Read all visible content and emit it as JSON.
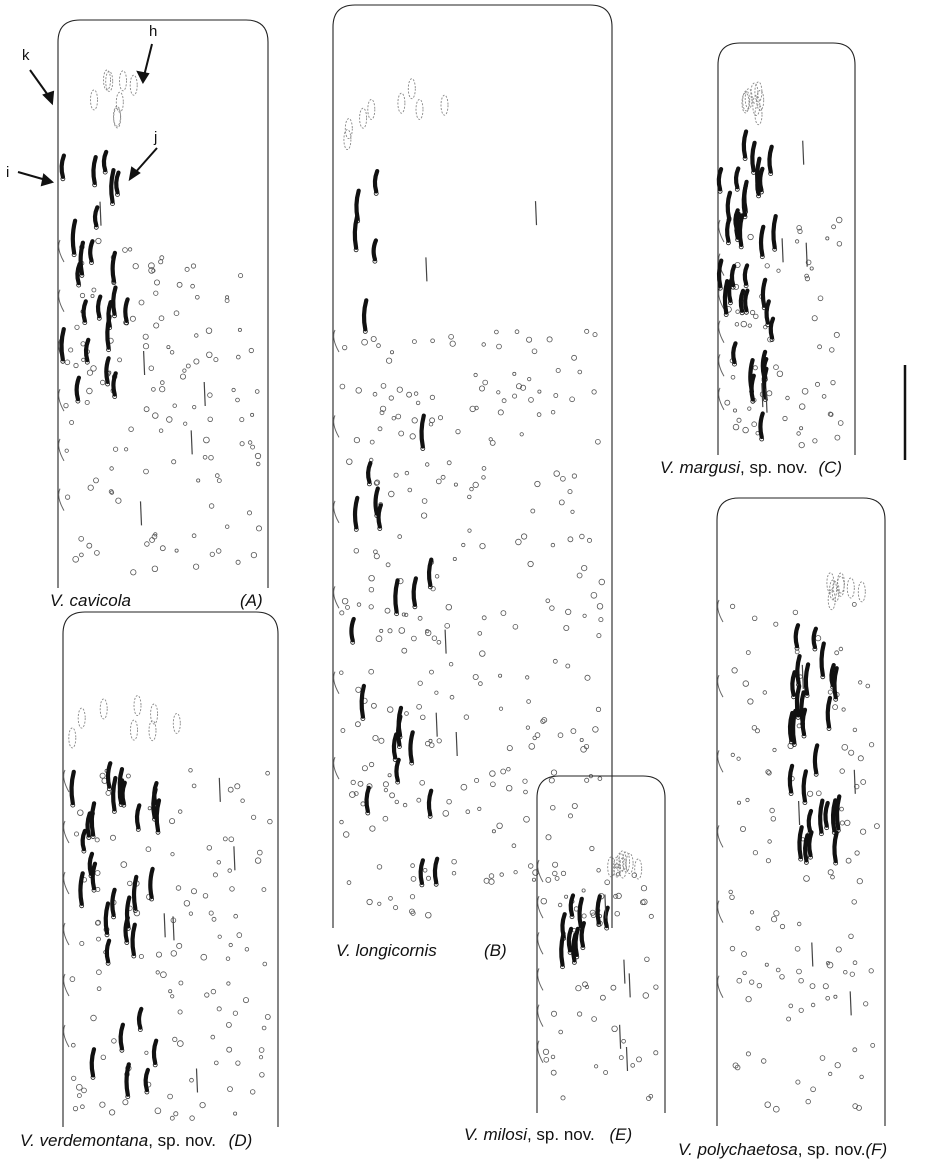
{
  "figure": {
    "annotations": [
      "k",
      "h",
      "i",
      "j"
    ],
    "colors": {
      "ink": "#111111",
      "outline": "#222222",
      "pore": "#555555"
    },
    "panels": [
      {
        "letter": "(A)",
        "species": "V. cavicola",
        "suffix": ""
      },
      {
        "letter": "(B)",
        "species": "V. longicornis",
        "suffix": ""
      },
      {
        "letter": "(C)",
        "species": "V. margusi",
        "suffix": ", sp. nov."
      },
      {
        "letter": "(D)",
        "species": "V. verdemontana",
        "suffix": ", sp. nov."
      },
      {
        "letter": "(E)",
        "species": "V. milosi",
        "suffix": ", sp. nov."
      },
      {
        "letter": "(F)",
        "species": "V. polychaetosa",
        "suffix": ", sp. nov."
      }
    ],
    "scale_bar_icon": "vertical-scale-bar"
  }
}
